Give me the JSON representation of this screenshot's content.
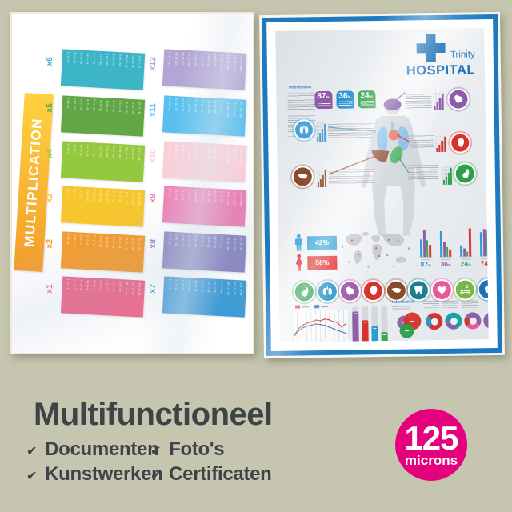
{
  "background": "#c6c6b0",
  "left_poster": {
    "title": "MULTIPLICATION",
    "ribbon_gradient": [
      "#ffd23e",
      "#f39d2c"
    ],
    "columns": [
      {
        "cards": [
          {
            "label": "x6",
            "color": "#3cb6c6",
            "facts": [
              "1 x 6 = 6",
              "2 x 6 = 12",
              "3 x 6 = 18",
              "4 x 6 = 24",
              "5 x 6 = 30",
              "6 x 6 = 36",
              "7 x 6 = 42",
              "8 x 6 = 48",
              "9 x 6 = 54",
              "10 x 6 = 60",
              "11 x 6 = 66",
              "12 x 6 = 72"
            ]
          },
          {
            "label": "x5",
            "color": "#61a746",
            "facts": [
              "1 x 5 = 5",
              "2 x 5 = 10",
              "3 x 5 = 15",
              "4 x 5 = 20",
              "5 x 5 = 25",
              "6 x 5 = 30",
              "7 x 5 = 35",
              "8 x 5 = 40",
              "9 x 5 = 45",
              "10 x 5 = 50",
              "11 x 5 = 55",
              "12 x 5 = 60"
            ]
          },
          {
            "label": "x4",
            "color": "#94c83e",
            "facts": [
              "1 x 4 = 4",
              "2 x 4 = 8",
              "3 x 4 = 12",
              "4 x 4 = 16",
              "5 x 4 = 20",
              "6 x 4 = 24",
              "7 x 4 = 28",
              "8 x 4 = 32",
              "9 x 4 = 36",
              "10 x 4 = 40",
              "11 x 4 = 44",
              "12 x 4 = 48"
            ]
          },
          {
            "label": "x3",
            "color": "#f6c62f",
            "facts": [
              "1 x 3 = 3",
              "2 x 3 = 6",
              "3 x 3 = 9",
              "4 x 3 = 12",
              "5 x 3 = 15",
              "6 x 3 = 18",
              "7 x 3 = 21",
              "8 x 3 = 24",
              "9 x 3 = 27",
              "10 x 3 = 30",
              "11 x 3 = 33",
              "12 x 3 = 36"
            ]
          },
          {
            "label": "x2",
            "color": "#f49c2f",
            "facts": [
              "1 x 2 = 2",
              "2 x 2 = 4",
              "3 x 2 = 6",
              "4 x 2 = 8",
              "5 x 2 = 10",
              "6 x 2 = 12",
              "7 x 2 = 14",
              "8 x 2 = 16",
              "9 x 2 = 18",
              "10 x 2 = 20",
              "11 x 2 = 22",
              "12 x 2 = 24"
            ]
          },
          {
            "label": "x1",
            "color": "#ee6b8d",
            "facts": [
              "1 x 1 = 1",
              "2 x 1 = 2",
              "3 x 1 = 3",
              "4 x 1 = 4",
              "5 x 1 = 5",
              "6 x 1 = 6",
              "7 x 1 = 7",
              "8 x 1 = 8",
              "9 x 1 = 9",
              "10 x 1 = 10",
              "11 x 1 = 11",
              "12 x 1 = 12"
            ]
          }
        ]
      },
      {
        "cards": [
          {
            "label": "x12",
            "color": "#b3a6d4",
            "facts": [
              "1 x 12 = 12",
              "2 x 12 = 24",
              "3 x 12 = 36",
              "4 x 12 = 48",
              "5 x 12 = 60",
              "6 x 12 = 72",
              "7 x 12 = 84",
              "8 x 12 = 96",
              "9 x 12 = 108",
              "10 x 12 = 120",
              "11 x 12 = 132",
              "12 x 12 = 144"
            ]
          },
          {
            "label": "x11",
            "color": "#58bfee",
            "facts": [
              "1 x 11 = 11",
              "2 x 11 = 22",
              "3 x 11 = 33",
              "4 x 11 = 44",
              "5 x 11 = 55",
              "6 x 11 = 66",
              "7 x 11 = 77",
              "8 x 11 = 88",
              "9 x 11 = 99",
              "10 x 11 = 110",
              "11 x 11 = 121",
              "12 x 11 = 132"
            ]
          },
          {
            "label": "x10",
            "color": "#f8cfd9",
            "facts": [
              "1 x 10 = 10",
              "2 x 10 = 20",
              "3 x 10 = 30",
              "4 x 10 = 40",
              "5 x 10 = 50",
              "6 x 10 = 60",
              "7 x 10 = 70",
              "8 x 10 = 80",
              "9 x 10 = 90",
              "10 x 10 = 100",
              "11 x 10 = 110",
              "12 x 10 = 120"
            ]
          },
          {
            "label": "x9",
            "color": "#ef7fb4",
            "facts": [
              "1 x 9 = 9",
              "2 x 9 = 18",
              "3 x 9 = 27",
              "4 x 9 = 36",
              "5 x 9 = 45",
              "6 x 9 = 54",
              "7 x 9 = 63",
              "8 x 9 = 72",
              "9 x 9 = 81",
              "10 x 9 = 90",
              "11 x 9 = 99",
              "12 x 9 = 108"
            ]
          },
          {
            "label": "x8",
            "color": "#8b87c0",
            "facts": [
              "1 x 8 = 8",
              "2 x 8 = 16",
              "3 x 8 = 24",
              "4 x 8 = 32",
              "5 x 8 = 40",
              "6 x 8 = 48",
              "7 x 8 = 56",
              "8 x 8 = 64",
              "9 x 8 = 72",
              "10 x 8 = 80",
              "11 x 8 = 88",
              "12 x 8 = 96"
            ]
          },
          {
            "label": "x7",
            "color": "#3f9cd6",
            "facts": [
              "1 x 7 = 7",
              "2 x 7 = 14",
              "3 x 7 = 21",
              "4 x 7 = 28",
              "5 x 7 = 35",
              "6 x 7 = 42",
              "7 x 7 = 49",
              "8 x 7 = 56",
              "9 x 7 = 63",
              "10 x 7 = 70",
              "11 x 7 = 77",
              "12 x 7 = 84"
            ]
          }
        ]
      }
    ]
  },
  "right_poster": {
    "logo_name": "Trinity",
    "logo_subname": "HOSPITAL",
    "logo_color": "#1d72b8",
    "trinity_color": "#2a7fc1",
    "frame_color": "#1d79c0",
    "info_label": "Information",
    "info_label_color": "#2e8fd0",
    "badge_unit": "%",
    "badges": [
      {
        "value": "87",
        "color": "#8e5ba6"
      },
      {
        "value": "36",
        "color": "#2d92cf"
      },
      {
        "value": "24",
        "color": "#2f9e48"
      }
    ],
    "organ_links": [
      {
        "organ": "brain",
        "color": "#8e5ba6",
        "line_color": "#8e5ba6"
      },
      {
        "organ": "lungs",
        "color": "#4aa3d8",
        "line_color": "#5aa7d8"
      },
      {
        "organ": "heart",
        "color": "#d6332f",
        "line_color": "#d6332f"
      },
      {
        "organ": "liver",
        "color": "#8a4a2c",
        "line_color": "#a0402a"
      },
      {
        "organ": "stomach",
        "color": "#2f9e48",
        "line_color": "#3aa756"
      }
    ],
    "gender_stats": [
      {
        "label": "42%",
        "color": "#2d9fd8"
      },
      {
        "label": "58%",
        "color": "#e02b2b"
      }
    ],
    "cluster_stats": {
      "bar_colors": [
        "#2e9bd6",
        "#8f5fa8",
        "#3aa756",
        "#d93a35"
      ],
      "groups": [
        {
          "value": "87",
          "unit": "%",
          "label_color": "#2e9bd6",
          "bars": [
            62,
            95,
            58,
            42
          ]
        },
        {
          "value": "36",
          "unit": "%",
          "label_color": "#8f5fa8",
          "bars": [
            88,
            52,
            34,
            24
          ]
        },
        {
          "value": "24",
          "unit": "%",
          "label_color": "#3aa756",
          "bars": [
            38,
            28,
            16,
            98
          ]
        },
        {
          "value": "74",
          "unit": "%",
          "label_color": "#d93a35",
          "bars": [
            82,
            95,
            88,
            52
          ]
        }
      ]
    },
    "organ_row": [
      {
        "name": "stomach",
        "color": "#2f9e4f"
      },
      {
        "name": "lungs",
        "color": "#2a93c8"
      },
      {
        "name": "brain",
        "color": "#9b59a8"
      },
      {
        "name": "heart",
        "color": "#d6332f"
      },
      {
        "name": "liver",
        "color": "#8a4a2c"
      },
      {
        "name": "tooth",
        "color": "#1f7f8f"
      },
      {
        "name": "heart-love",
        "color": "#e8599a"
      },
      {
        "name": "sleep",
        "color": "#7ab648"
      },
      {
        "name": "apple",
        "color": "#1f6fb5"
      }
    ],
    "bottom": {
      "info_label": "Information",
      "line_chart": {
        "red_series": [
          18,
          40,
          52,
          60,
          63,
          70,
          67,
          73,
          71,
          63,
          59,
          42,
          55
        ],
        "blue_series": [
          14,
          32,
          42,
          48,
          51,
          55,
          53,
          49,
          43,
          37,
          30,
          24,
          18
        ],
        "colors": [
          "#d6332f",
          "#3a6ea5"
        ]
      },
      "bar_chart": {
        "heights_pct": [
          88,
          64,
          47,
          30
        ],
        "colors": [
          "#8f5fa8",
          "#d6332f",
          "#2e9bd6",
          "#3aa756"
        ]
      },
      "venn_colors": [
        "#8f5fa8",
        "#d6332f",
        "#2f9e48"
      ],
      "donuts": [
        {
          "from": 220,
          "segments": [
            {
              "color": "#2a93c8",
              "pct": 25
            },
            {
              "color": "#d6332f",
              "pct": 75
            }
          ]
        },
        {
          "from": 160,
          "segments": [
            {
              "color": "#8f5fa8",
              "pct": 30
            },
            {
              "color": "#1ba0a8",
              "pct": 70
            }
          ]
        },
        {
          "from": 120,
          "segments": [
            {
              "color": "#e8599a",
              "pct": 30
            },
            {
              "color": "#d6332f",
              "pct": 18
            },
            {
              "color": "#8f5fa8",
              "pct": 52
            }
          ]
        },
        {
          "from": 0,
          "segments": [
            {
              "color": "#8a4a2c",
              "pct": 50
            },
            {
              "color": "#8f5fa8",
              "pct": 50
            }
          ]
        }
      ]
    }
  },
  "footer": {
    "title": "Multifunctioneel",
    "text_color": "#3d4347",
    "check": "✔",
    "features": [
      "Documenten",
      "Kunstwerken",
      "Foto's",
      "Certificaten"
    ],
    "badge_value": "125",
    "badge_unit": "microns",
    "badge_color": "#e5017e"
  }
}
